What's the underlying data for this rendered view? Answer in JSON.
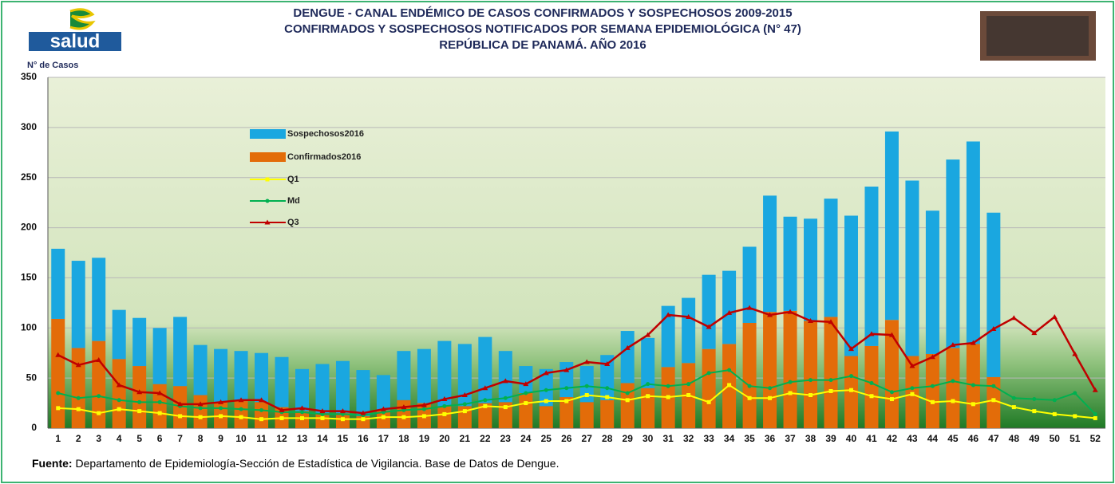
{
  "chart_data": {
    "type": "combo",
    "title": [
      "DENGUE - CANAL ENDÉMICO DE CASOS CONFIRMADOS Y SOSPECHOSOS 2009-2015",
      "CONFIRMADOS Y SOSPECHOSOS NOTIFICADOS POR SEMANA EPIDEMIOLÓGICA (N° 47)",
      "REPÚBLICA DE PANAMÁ. AÑO 2016"
    ],
    "logo_text": "salud",
    "y_axis_label": "N° de Casos",
    "source_label": "Fuente:",
    "source_text": "Departamento de Epidemiología-Sección de Estadística de Vigilancia. Base de Datos de Dengue.",
    "categories": [
      "1",
      "2",
      "3",
      "4",
      "5",
      "6",
      "7",
      "8",
      "9",
      "10",
      "11",
      "12",
      "13",
      "14",
      "15",
      "16",
      "17",
      "18",
      "19",
      "20",
      "21",
      "22",
      "23",
      "24",
      "25",
      "26",
      "27",
      "28",
      "29",
      "30",
      "31",
      "32",
      "33",
      "34",
      "35",
      "36",
      "37",
      "38",
      "39",
      "40",
      "41",
      "42",
      "43",
      "44",
      "45",
      "46",
      "47",
      "48",
      "49",
      "50",
      "51",
      "52"
    ],
    "ylim": [
      0,
      350
    ],
    "yticks": [
      0,
      50,
      100,
      150,
      200,
      250,
      300,
      350
    ],
    "grid": true,
    "stacked": true,
    "series": [
      {
        "name": "Sospechosos2016",
        "kind": "bar",
        "color": "#1aa7e0",
        "values": [
          70,
          87,
          83,
          49,
          48,
          56,
          69,
          50,
          53,
          50,
          49,
          50,
          42,
          49,
          52,
          46,
          35,
          49,
          54,
          65,
          62,
          66,
          51,
          27,
          37,
          35,
          36,
          45,
          52,
          50,
          61,
          65,
          74,
          73,
          76,
          116,
          94,
          102,
          118,
          140,
          159,
          188,
          175,
          143,
          188,
          202,
          164,
          null,
          null,
          null,
          null,
          null
        ]
      },
      {
        "name": "Confirmados2016",
        "kind": "bar",
        "color": "#e36c09",
        "values": [
          109,
          80,
          87,
          69,
          62,
          44,
          42,
          33,
          26,
          27,
          26,
          21,
          17,
          15,
          15,
          12,
          18,
          28,
          25,
          22,
          22,
          25,
          26,
          35,
          22,
          31,
          26,
          28,
          45,
          40,
          61,
          65,
          79,
          84,
          105,
          116,
          117,
          107,
          111,
          72,
          82,
          108,
          72,
          74,
          80,
          84,
          51,
          null,
          null,
          null,
          null,
          null
        ]
      },
      {
        "name": "Q1",
        "kind": "line",
        "marker": "square",
        "color": "#ffff00",
        "values": [
          20,
          19,
          15,
          19,
          17,
          15,
          12,
          11,
          12,
          11,
          9,
          10,
          10,
          10,
          9,
          9,
          11,
          11,
          12,
          14,
          17,
          22,
          21,
          25,
          27,
          27,
          33,
          31,
          28,
          32,
          31,
          33,
          26,
          43,
          30,
          30,
          35,
          33,
          37,
          38,
          32,
          29,
          34,
          26,
          27,
          24,
          28,
          21,
          17,
          14,
          12,
          10
        ]
      },
      {
        "name": "Md",
        "kind": "line",
        "marker": "circle",
        "color": "#00b050",
        "values": [
          35,
          30,
          32,
          28,
          26,
          26,
          22,
          20,
          20,
          19,
          18,
          16,
          16,
          14,
          14,
          13,
          16,
          18,
          19,
          22,
          24,
          28,
          30,
          35,
          38,
          40,
          42,
          40,
          35,
          44,
          42,
          44,
          55,
          58,
          42,
          40,
          46,
          48,
          48,
          52,
          45,
          36,
          40,
          42,
          47,
          43,
          42,
          30,
          29,
          28,
          35,
          14
        ]
      },
      {
        "name": "Q3",
        "kind": "line",
        "marker": "triangle",
        "color": "#c00000",
        "values": [
          73,
          63,
          68,
          43,
          36,
          35,
          24,
          24,
          26,
          28,
          28,
          18,
          20,
          17,
          17,
          15,
          19,
          21,
          23,
          29,
          33,
          40,
          47,
          44,
          55,
          58,
          66,
          64,
          80,
          93,
          113,
          111,
          101,
          115,
          120,
          113,
          116,
          107,
          106,
          79,
          94,
          93,
          62,
          71,
          83,
          85,
          99,
          110,
          95,
          111,
          74,
          38
        ]
      }
    ]
  }
}
